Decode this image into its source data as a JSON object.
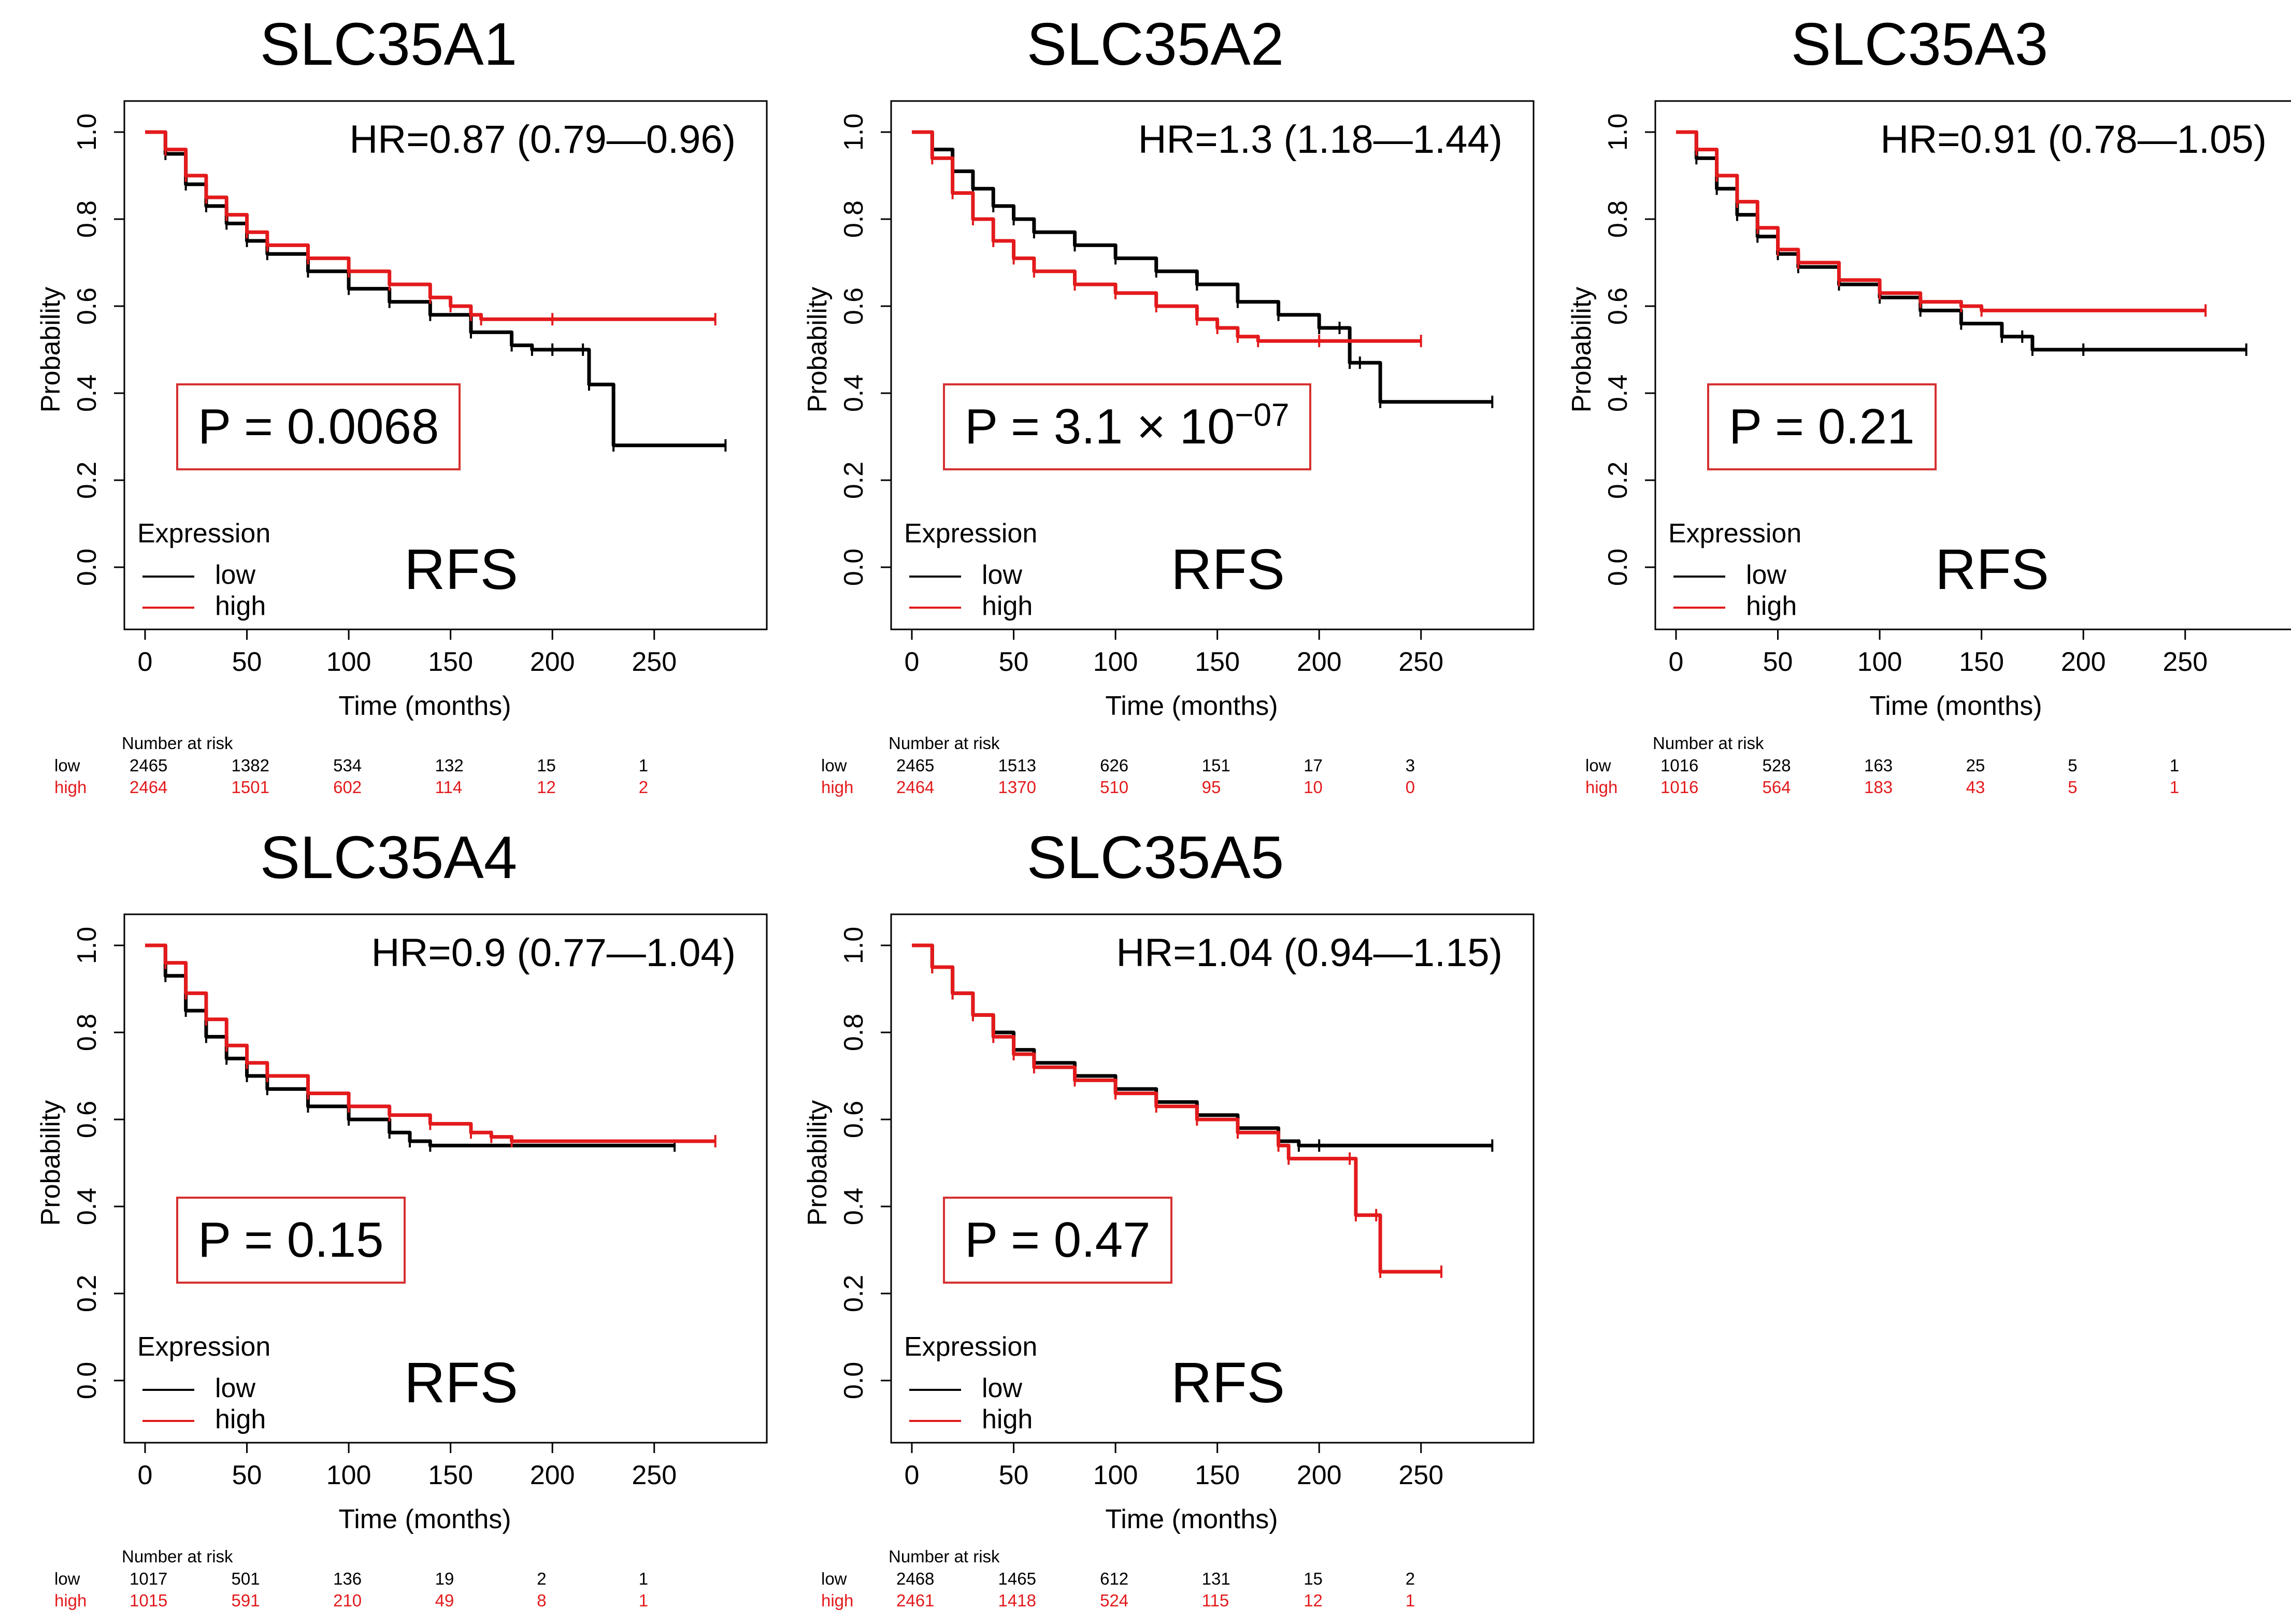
{
  "colors": {
    "low": "#000000",
    "high": "#e31a1c",
    "pbox_border": "#d63030"
  },
  "labels": {
    "xlabel": "Time (months)",
    "ylabel": "Probability",
    "legend_title": "Expression",
    "legend_low": "low",
    "legend_high": "high",
    "endpoint": "RFS",
    "risk_header": "Number at risk",
    "risk_low": "low",
    "risk_high": "high"
  },
  "chart_data": [
    {
      "type": "line",
      "title": "SLC35A1",
      "hr": "HR=0.87 (0.79—0.96)",
      "p_text": "P = 0.0068",
      "p_mantissa": "",
      "p_exponent": "",
      "xlabel": "Time (months)",
      "ylabel": "Probability",
      "xlim": [
        0,
        290
      ],
      "ylim": [
        0,
        1
      ],
      "xticks": [
        0,
        50,
        100,
        150,
        200,
        250
      ],
      "yticks": [
        0.0,
        0.2,
        0.4,
        0.6,
        0.8,
        1.0
      ],
      "series": [
        {
          "name": "low",
          "x": [
            0,
            10,
            20,
            30,
            40,
            50,
            60,
            80,
            100,
            120,
            140,
            160,
            180,
            190,
            200,
            215,
            218,
            230,
            285
          ],
          "y": [
            1.0,
            0.95,
            0.88,
            0.83,
            0.79,
            0.75,
            0.72,
            0.68,
            0.64,
            0.61,
            0.58,
            0.54,
            0.51,
            0.5,
            0.5,
            0.5,
            0.42,
            0.28,
            0.28
          ]
        },
        {
          "name": "high",
          "x": [
            0,
            10,
            20,
            30,
            40,
            50,
            60,
            80,
            100,
            120,
            140,
            150,
            160,
            165,
            200,
            280
          ],
          "y": [
            1.0,
            0.96,
            0.9,
            0.85,
            0.81,
            0.77,
            0.74,
            0.71,
            0.68,
            0.65,
            0.62,
            0.6,
            0.58,
            0.57,
            0.57,
            0.57
          ]
        }
      ],
      "risk_times": [
        0,
        50,
        100,
        150,
        200,
        250
      ],
      "risk_low": [
        "2465",
        "1382",
        "534",
        "132",
        "15",
        "1"
      ],
      "risk_high": [
        "2464",
        "1501",
        "602",
        "114",
        "12",
        "2"
      ]
    },
    {
      "type": "line",
      "title": "SLC35A2",
      "hr": "HR=1.3 (1.18—1.44)",
      "p_text": "",
      "p_mantissa": "P = 3.1 × 10",
      "p_exponent": "−07",
      "xlabel": "Time (months)",
      "ylabel": "Probability",
      "xlim": [
        0,
        290
      ],
      "ylim": [
        0,
        1
      ],
      "xticks": [
        0,
        50,
        100,
        150,
        200,
        250
      ],
      "yticks": [
        0.0,
        0.2,
        0.4,
        0.6,
        0.8,
        1.0
      ],
      "series": [
        {
          "name": "low",
          "x": [
            0,
            10,
            20,
            30,
            40,
            50,
            60,
            80,
            100,
            120,
            140,
            160,
            180,
            200,
            210,
            215,
            220,
            230,
            285
          ],
          "y": [
            1.0,
            0.96,
            0.91,
            0.87,
            0.83,
            0.8,
            0.77,
            0.74,
            0.71,
            0.68,
            0.65,
            0.61,
            0.58,
            0.55,
            0.55,
            0.47,
            0.47,
            0.38,
            0.38
          ]
        },
        {
          "name": "high",
          "x": [
            0,
            10,
            20,
            30,
            40,
            50,
            60,
            80,
            100,
            120,
            140,
            150,
            160,
            170,
            200,
            250
          ],
          "y": [
            1.0,
            0.94,
            0.86,
            0.8,
            0.75,
            0.71,
            0.68,
            0.65,
            0.63,
            0.6,
            0.57,
            0.55,
            0.53,
            0.52,
            0.52,
            0.52
          ]
        }
      ],
      "risk_times": [
        0,
        50,
        100,
        150,
        200,
        250
      ],
      "risk_low": [
        "2465",
        "1513",
        "626",
        "151",
        "17",
        "3"
      ],
      "risk_high": [
        "2464",
        "1370",
        "510",
        "95",
        "10",
        "0"
      ]
    },
    {
      "type": "line",
      "title": "SLC35A3",
      "hr": "HR=0.91 (0.78—1.05)",
      "p_text": "P = 0.21",
      "p_mantissa": "",
      "p_exponent": "",
      "xlabel": "Time (months)",
      "ylabel": "Probability",
      "xlim": [
        0,
        290
      ],
      "ylim": [
        0,
        1
      ],
      "xticks": [
        0,
        50,
        100,
        150,
        200,
        250
      ],
      "yticks": [
        0.0,
        0.2,
        0.4,
        0.6,
        0.8,
        1.0
      ],
      "series": [
        {
          "name": "low",
          "x": [
            0,
            10,
            20,
            30,
            40,
            50,
            60,
            80,
            100,
            120,
            140,
            160,
            170,
            175,
            200,
            280
          ],
          "y": [
            1.0,
            0.94,
            0.87,
            0.81,
            0.76,
            0.72,
            0.69,
            0.65,
            0.62,
            0.59,
            0.56,
            0.53,
            0.53,
            0.5,
            0.5,
            0.5
          ]
        },
        {
          "name": "high",
          "x": [
            0,
            10,
            20,
            30,
            40,
            50,
            60,
            80,
            100,
            120,
            140,
            150,
            260
          ],
          "y": [
            1.0,
            0.96,
            0.9,
            0.84,
            0.78,
            0.73,
            0.7,
            0.66,
            0.63,
            0.61,
            0.6,
            0.59,
            0.59
          ]
        }
      ],
      "risk_times": [
        0,
        50,
        100,
        150,
        200,
        250
      ],
      "risk_low": [
        "1016",
        "528",
        "163",
        "25",
        "5",
        "1"
      ],
      "risk_high": [
        "1016",
        "564",
        "183",
        "43",
        "5",
        "1"
      ]
    },
    {
      "type": "line",
      "title": "SLC35A4",
      "hr": "HR=0.9 (0.77—1.04)",
      "p_text": "P = 0.15",
      "p_mantissa": "",
      "p_exponent": "",
      "xlabel": "Time (months)",
      "ylabel": "Probability",
      "xlim": [
        0,
        290
      ],
      "ylim": [
        0,
        1
      ],
      "xticks": [
        0,
        50,
        100,
        150,
        200,
        250
      ],
      "yticks": [
        0.0,
        0.2,
        0.4,
        0.6,
        0.8,
        1.0
      ],
      "series": [
        {
          "name": "low",
          "x": [
            0,
            10,
            20,
            30,
            40,
            50,
            60,
            80,
            100,
            120,
            130,
            140,
            260
          ],
          "y": [
            1.0,
            0.93,
            0.85,
            0.79,
            0.74,
            0.7,
            0.67,
            0.63,
            0.6,
            0.57,
            0.55,
            0.54,
            0.54
          ]
        },
        {
          "name": "high",
          "x": [
            0,
            10,
            20,
            30,
            40,
            50,
            60,
            80,
            100,
            120,
            140,
            160,
            170,
            180,
            280
          ],
          "y": [
            1.0,
            0.96,
            0.89,
            0.83,
            0.77,
            0.73,
            0.7,
            0.66,
            0.63,
            0.61,
            0.59,
            0.57,
            0.56,
            0.55,
            0.55
          ]
        }
      ],
      "risk_times": [
        0,
        50,
        100,
        150,
        200,
        250
      ],
      "risk_low": [
        "1017",
        "501",
        "136",
        "19",
        "2",
        "1"
      ],
      "risk_high": [
        "1015",
        "591",
        "210",
        "49",
        "8",
        "1"
      ]
    },
    {
      "type": "line",
      "title": "SLC35A5",
      "hr": "HR=1.04 (0.94—1.15)",
      "p_text": "P = 0.47",
      "p_mantissa": "",
      "p_exponent": "",
      "xlabel": "Time (months)",
      "ylabel": "Probability",
      "xlim": [
        0,
        290
      ],
      "ylim": [
        0,
        1
      ],
      "xticks": [
        0,
        50,
        100,
        150,
        200,
        250
      ],
      "yticks": [
        0.0,
        0.2,
        0.4,
        0.6,
        0.8,
        1.0
      ],
      "series": [
        {
          "name": "low",
          "x": [
            0,
            10,
            20,
            30,
            40,
            50,
            60,
            80,
            100,
            120,
            140,
            160,
            180,
            190,
            200,
            285
          ],
          "y": [
            1.0,
            0.95,
            0.89,
            0.84,
            0.8,
            0.76,
            0.73,
            0.7,
            0.67,
            0.64,
            0.61,
            0.58,
            0.55,
            0.54,
            0.54,
            0.54
          ]
        },
        {
          "name": "high",
          "x": [
            0,
            10,
            20,
            30,
            40,
            50,
            60,
            80,
            100,
            120,
            140,
            160,
            180,
            185,
            215,
            218,
            228,
            230,
            260
          ],
          "y": [
            1.0,
            0.95,
            0.89,
            0.84,
            0.79,
            0.75,
            0.72,
            0.69,
            0.66,
            0.63,
            0.6,
            0.57,
            0.54,
            0.51,
            0.51,
            0.38,
            0.38,
            0.25,
            0.25
          ]
        }
      ],
      "risk_times": [
        0,
        50,
        100,
        150,
        200,
        250
      ],
      "risk_low": [
        "2468",
        "1465",
        "612",
        "131",
        "15",
        "2"
      ],
      "risk_high": [
        "2461",
        "1418",
        "524",
        "115",
        "12",
        "1"
      ]
    }
  ]
}
